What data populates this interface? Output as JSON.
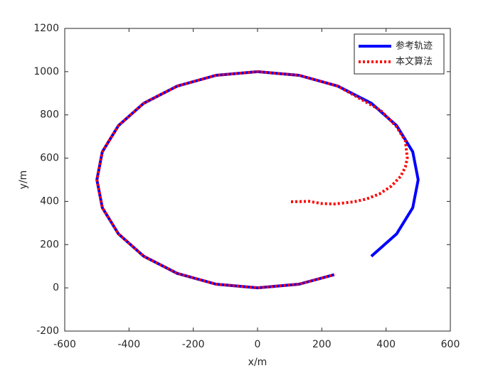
{
  "chart_data": {
    "type": "line",
    "xlabel": "x/m",
    "ylabel": "y/m",
    "xlim": [
      -600,
      600
    ],
    "xticks": [
      -600,
      -400,
      -200,
      0,
      200,
      400,
      600
    ],
    "ylim": [
      -200,
      1200
    ],
    "yticks": [
      -200,
      0,
      200,
      400,
      600,
      800,
      1000,
      1200
    ],
    "grid": false,
    "legend": "top-right",
    "series": [
      {
        "name": "参考轨迹",
        "color": "#0000ff",
        "style": "solid",
        "x": [
          354,
          433,
          483,
          500,
          483,
          433,
          354,
          250,
          129,
          0,
          -129,
          -250,
          -354,
          -433,
          -483,
          -500,
          -483,
          -433,
          -354,
          -250,
          -129,
          0,
          129,
          239
        ],
        "values": [
          146,
          250,
          371,
          500,
          629,
          750,
          854,
          933,
          983,
          1000,
          983,
          933,
          854,
          750,
          629,
          500,
          371,
          250,
          146,
          67,
          17,
          0,
          17,
          61
        ]
      },
      {
        "name": "本文算法",
        "color": "#ff0000",
        "style": "dotted",
        "x": [
          104,
          160,
          200,
          240,
          300,
          339,
          380,
          416,
          445,
          460,
          466,
          460,
          432,
          383,
          250,
          129,
          0,
          -129,
          -250,
          -354,
          -433,
          -483,
          -500,
          -483,
          -433,
          -354,
          -250,
          -129,
          0,
          129,
          239
        ],
        "values": [
          398,
          400,
          390,
          388,
          398,
          411,
          435,
          470,
          515,
          559,
          600,
          680,
          746,
          821,
          933,
          983,
          1000,
          983,
          933,
          854,
          750,
          629,
          500,
          371,
          250,
          146,
          67,
          17,
          0,
          17,
          61
        ]
      }
    ]
  }
}
